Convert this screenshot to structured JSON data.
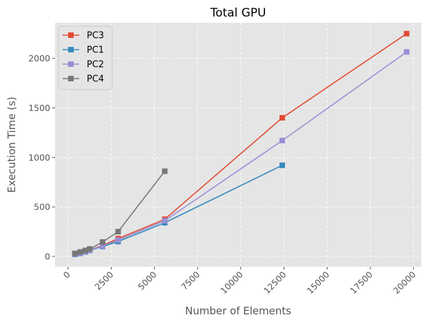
{
  "chart_data": {
    "type": "line",
    "title": "Total GPU",
    "xlabel": "Number of Elements",
    "ylabel": "Execution Time (s)",
    "xlim": [
      -750,
      20450
    ],
    "ylim": [
      -105,
      2360
    ],
    "xticks": [
      0,
      2500,
      5000,
      7500,
      10000,
      12500,
      15000,
      17500,
      20000
    ],
    "yticks": [
      0,
      500,
      1000,
      1500,
      2000
    ],
    "grid": true,
    "legend_position": "top-left",
    "series": [
      {
        "name": "PC3",
        "color": "#e24a33",
        "x": [
          400,
          700,
          1000,
          1250,
          2000,
          2900,
          5600,
          12400,
          19600
        ],
        "y": [
          25,
          35,
          50,
          65,
          110,
          180,
          375,
          1400,
          2250
        ]
      },
      {
        "name": "PC1",
        "color": "#348abd",
        "x": [
          400,
          700,
          1000,
          1250,
          2000,
          2900,
          5600,
          12400
        ],
        "y": [
          20,
          30,
          45,
          60,
          100,
          150,
          340,
          920
        ]
      },
      {
        "name": "PC2",
        "color": "#988ed5",
        "x": [
          400,
          700,
          1000,
          1250,
          2000,
          2900,
          5600,
          12400,
          19600
        ],
        "y": [
          22,
          33,
          48,
          62,
          105,
          165,
          360,
          1170,
          2065
        ]
      },
      {
        "name": "PC4",
        "color": "#777777",
        "x": [
          400,
          700,
          1000,
          1250,
          2000,
          2900,
          5600
        ],
        "y": [
          30,
          45,
          60,
          75,
          145,
          250,
          860
        ]
      }
    ]
  }
}
